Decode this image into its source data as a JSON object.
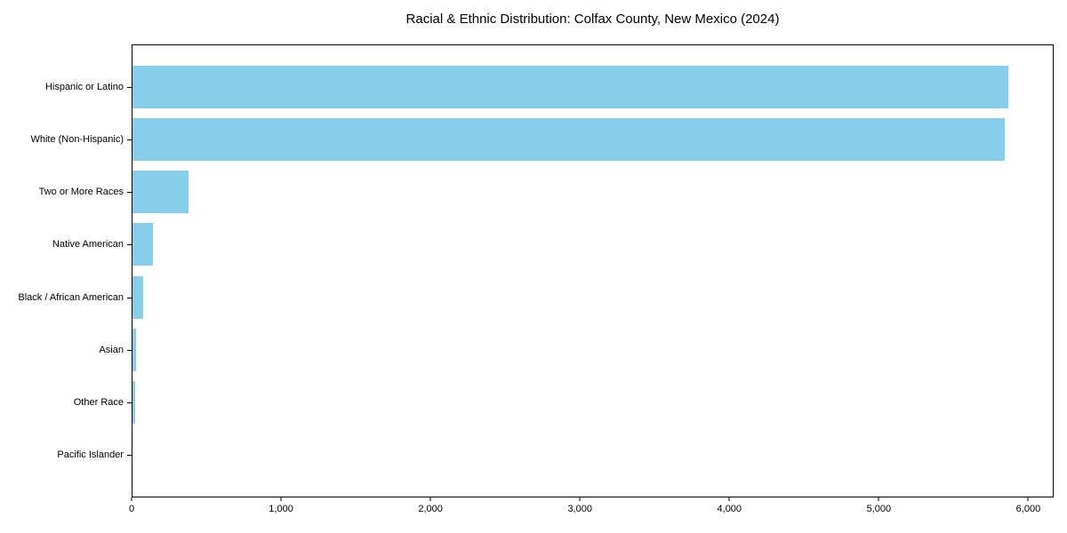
{
  "colors": {
    "bar": "#87CEEB",
    "spine": "#000000",
    "text": "#000000",
    "background": "#ffffff"
  },
  "chart_data": {
    "type": "bar",
    "orientation": "horizontal",
    "title": "Racial & Ethnic Distribution: Colfax County, New Mexico (2024)",
    "xlabel": "",
    "ylabel": "",
    "categories": [
      "Hispanic or Latino",
      "White (Non-Hispanic)",
      "Two or More Races",
      "Native American",
      "Black / African American",
      "Asian",
      "Other Race",
      "Pacific Islander"
    ],
    "values": [
      5870,
      5850,
      375,
      135,
      70,
      26,
      20,
      0
    ],
    "xlim": [
      0,
      6170
    ],
    "xticks": [
      0,
      1000,
      2000,
      3000,
      4000,
      5000,
      6000
    ],
    "xtick_labels": [
      "0",
      "1,000",
      "2,000",
      "3,000",
      "4,000",
      "5,000",
      "6,000"
    ],
    "grid": false,
    "legend": null,
    "bar_color": "#87CEEB"
  }
}
